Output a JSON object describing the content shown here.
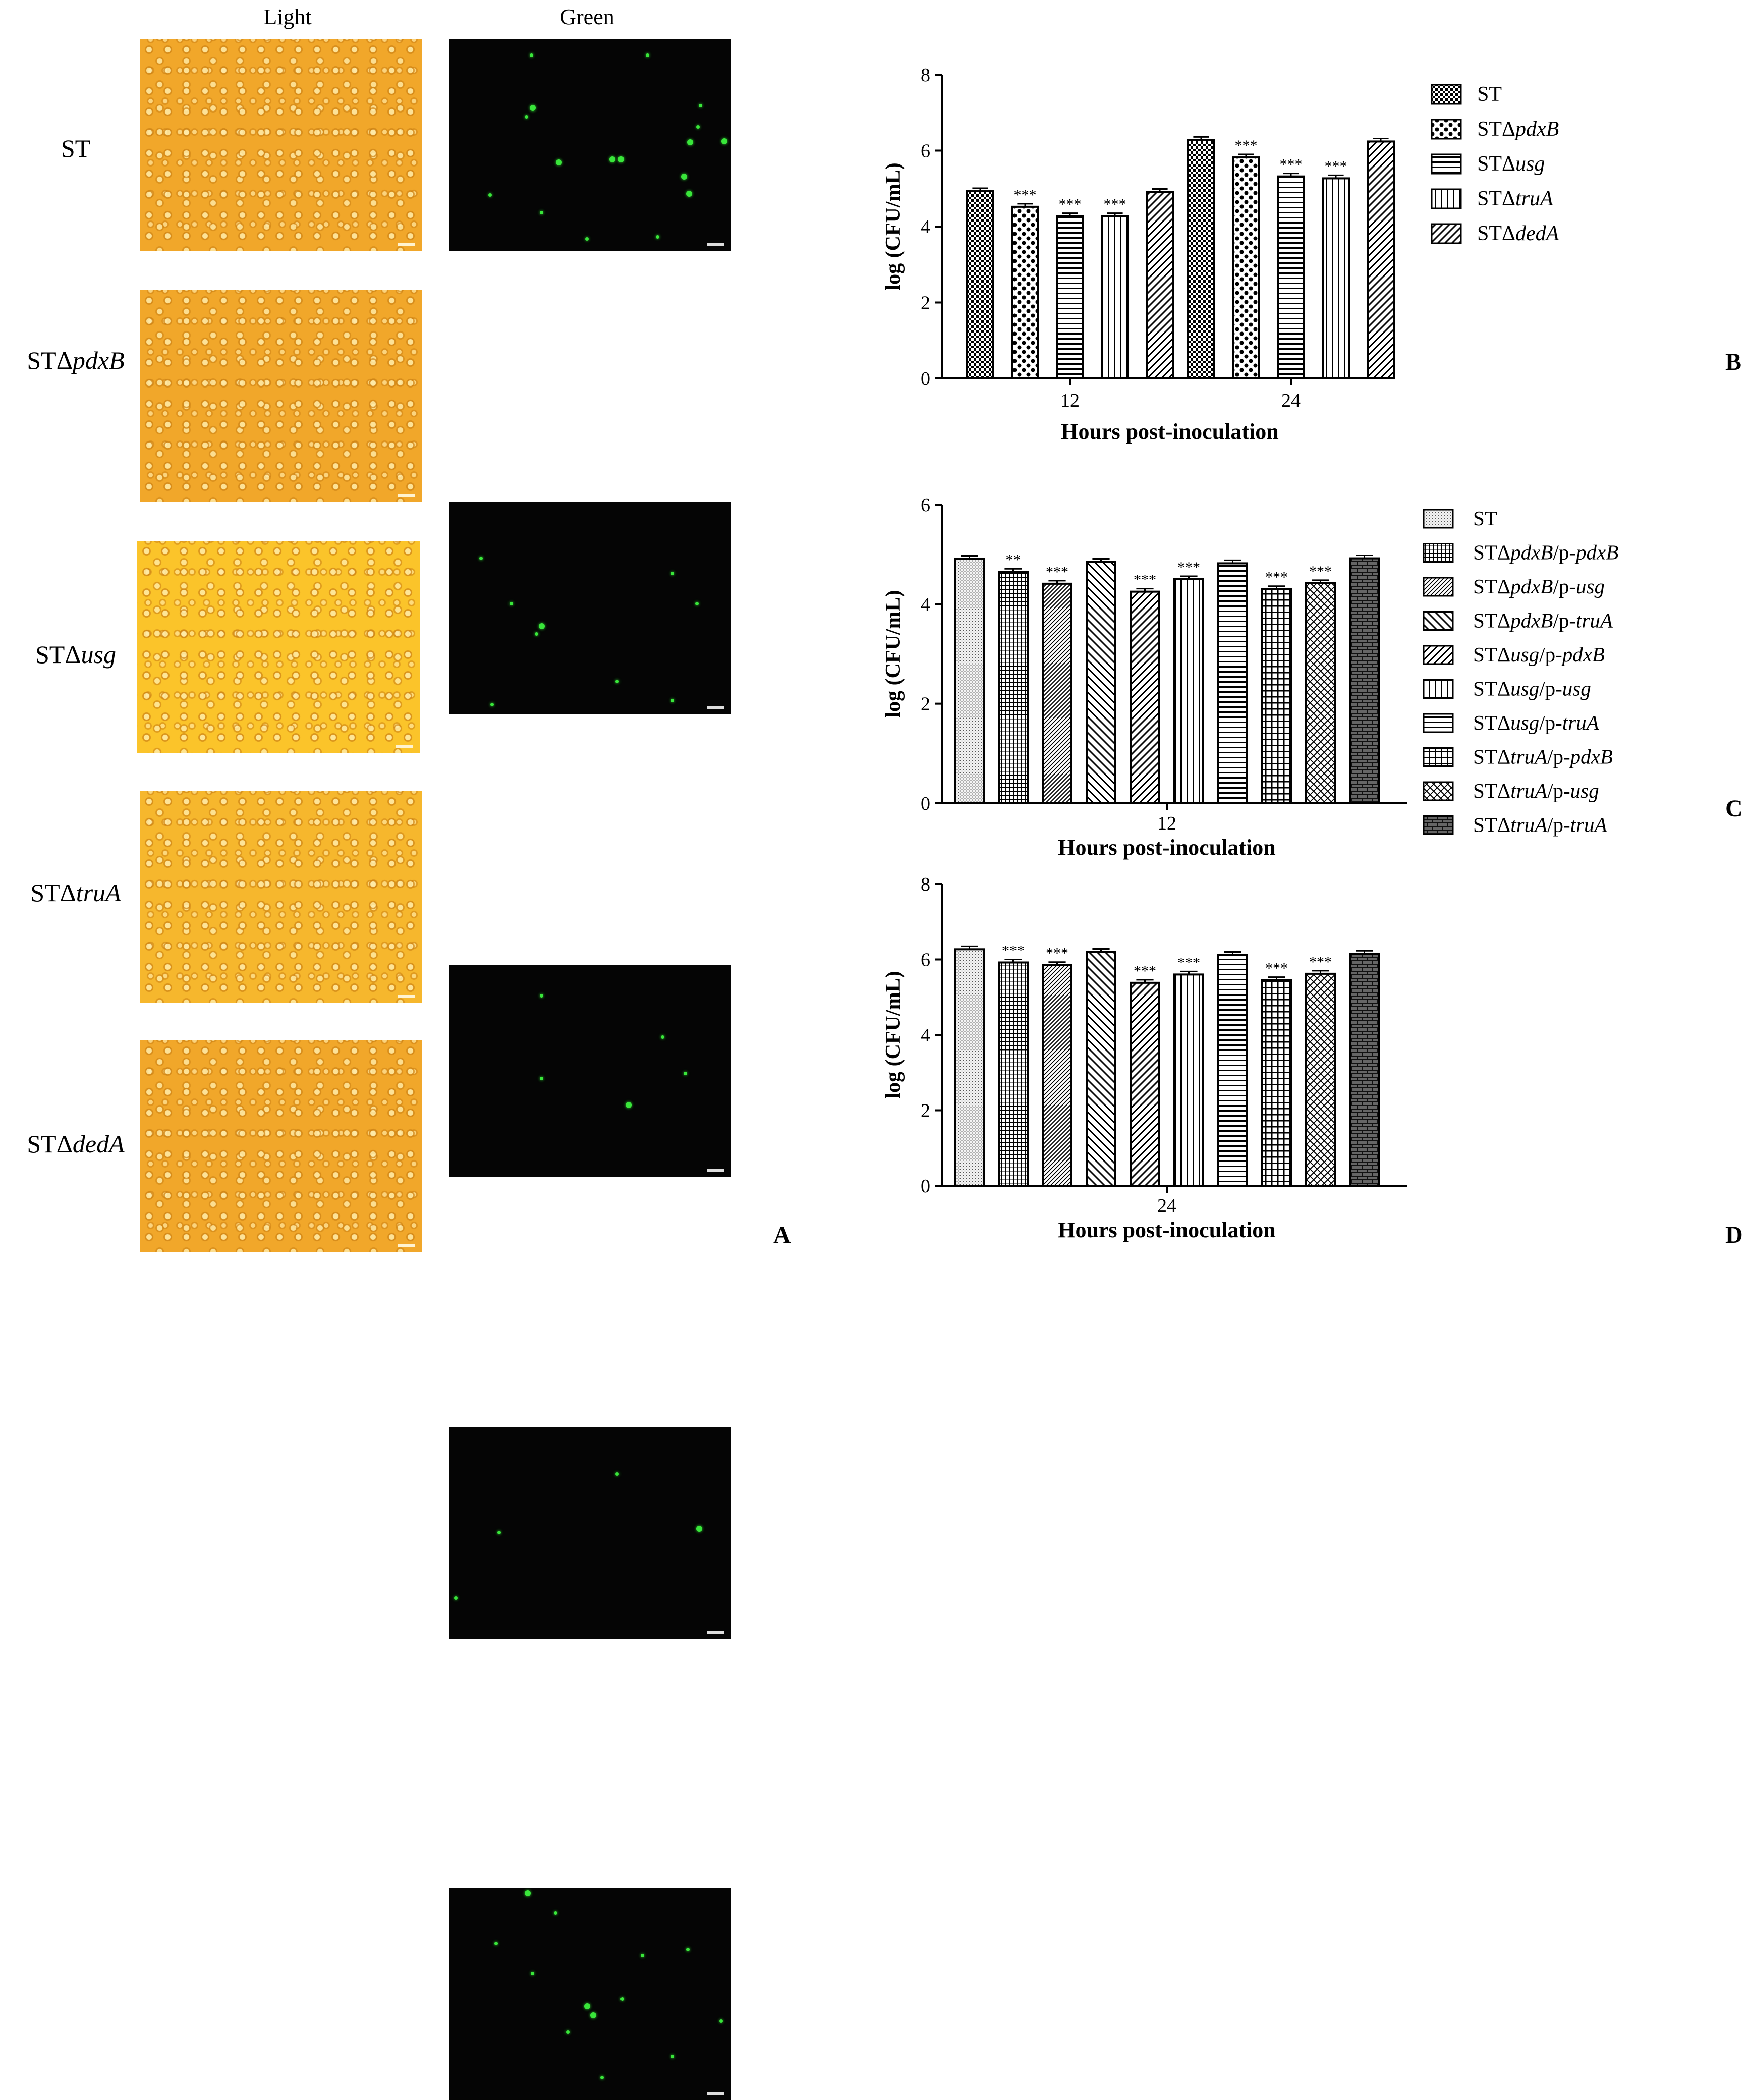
{
  "panel_a": {
    "col_labels": [
      "Light",
      "Green"
    ],
    "row_labels": [
      {
        "prefix": "ST",
        "italic": ""
      },
      {
        "prefix": "STΔ",
        "italic": "pdxB"
      },
      {
        "prefix": "STΔ",
        "italic": "usg"
      },
      {
        "prefix": "STΔ",
        "italic": "truA"
      },
      {
        "prefix": "STΔ",
        "italic": "dedA"
      }
    ],
    "letter": "A"
  },
  "panel_letters": {
    "b": "B",
    "c": "C",
    "d": "D"
  },
  "colors": {
    "bar_stroke": "#000000",
    "background": "#ffffff",
    "light_field": "#f1a72a",
    "green_dot": "#39e63a"
  },
  "chart_data": [
    {
      "id": "B",
      "type": "bar",
      "ylabel": "log (CFU/mL)",
      "xlabel": "Hours post-inoculation",
      "ylim": [
        0,
        8
      ],
      "yticks": [
        0,
        2,
        4,
        6,
        8
      ],
      "categories": [
        "12",
        "24"
      ],
      "series": [
        {
          "name": "ST",
          "name_prefix": "ST",
          "name_italic": "",
          "name_suffix": "",
          "pattern": "checker-fine",
          "values": [
            4.93,
            6.28
          ],
          "sig": [
            "",
            ""
          ]
        },
        {
          "name": "STΔpdxB",
          "name_prefix": "STΔ",
          "name_italic": "pdxB",
          "name_suffix": "",
          "pattern": "checker-large",
          "values": [
            4.52,
            5.82
          ],
          "sig": [
            "***",
            "***"
          ]
        },
        {
          "name": "STΔusg",
          "name_prefix": "STΔ",
          "name_italic": "usg",
          "name_suffix": "",
          "pattern": "hlines",
          "values": [
            4.27,
            5.32
          ],
          "sig": [
            "***",
            "***"
          ]
        },
        {
          "name": "STΔtruA",
          "name_prefix": "STΔ",
          "name_italic": "truA",
          "name_suffix": "",
          "pattern": "vlines",
          "values": [
            4.27,
            5.27
          ],
          "sig": [
            "***",
            "***"
          ]
        },
        {
          "name": "STΔdedA",
          "name_prefix": "STΔ",
          "name_italic": "dedA",
          "name_suffix": "",
          "pattern": "diag-up",
          "values": [
            4.91,
            6.24
          ],
          "sig": [
            "",
            ""
          ]
        }
      ]
    },
    {
      "id": "C",
      "type": "bar",
      "ylabel": "log (CFU/mL)",
      "xlabel": "Hours post-inoculation",
      "ylim": [
        0,
        6
      ],
      "yticks": [
        0,
        2,
        4,
        6
      ],
      "categories": [
        "12"
      ],
      "series": [
        {
          "name": "ST",
          "name_prefix": "ST",
          "name_italic": "",
          "name_mid": "",
          "name_italic2": "",
          "pattern": "dots",
          "values": [
            4.91
          ],
          "sig": [
            ""
          ]
        },
        {
          "name": "STΔpdxB/p-pdxB",
          "name_prefix": "STΔ",
          "name_italic": "pdxB",
          "name_mid": "/p-",
          "name_italic2": "pdxB",
          "pattern": "vlines-dense",
          "values": [
            4.65
          ],
          "sig": [
            "**"
          ]
        },
        {
          "name": "STΔpdxB/p-usg",
          "name_prefix": "STΔ",
          "name_italic": "pdxB",
          "name_mid": "/p-",
          "name_italic2": "usg",
          "pattern": "diag-up-fine",
          "values": [
            4.41
          ],
          "sig": [
            "***"
          ]
        },
        {
          "name": "STΔpdxB/p-truA",
          "name_prefix": "STΔ",
          "name_italic": "pdxB",
          "name_mid": "/p-",
          "name_italic2": "truA",
          "pattern": "diag-down",
          "values": [
            4.85
          ],
          "sig": [
            ""
          ]
        },
        {
          "name": "STΔusg/p-pdxB",
          "name_prefix": "STΔ",
          "name_italic": "usg",
          "name_mid": "/p-",
          "name_italic2": "pdxB",
          "pattern": "diag-up",
          "values": [
            4.25
          ],
          "sig": [
            "***"
          ]
        },
        {
          "name": "STΔusg/p-usg",
          "name_prefix": "STΔ",
          "name_italic": "usg",
          "name_mid": "/p-",
          "name_italic2": "usg",
          "pattern": "vlines",
          "values": [
            4.5
          ],
          "sig": [
            "***"
          ]
        },
        {
          "name": "STΔusg/p-truA",
          "name_prefix": "STΔ",
          "name_italic": "usg",
          "name_mid": "/p-",
          "name_italic2": "truA",
          "pattern": "hlines",
          "values": [
            4.82
          ],
          "sig": [
            ""
          ]
        },
        {
          "name": "STΔtruA/p-pdxB",
          "name_prefix": "STΔ",
          "name_italic": "truA",
          "name_mid": "/p-",
          "name_italic2": "pdxB",
          "pattern": "grid",
          "values": [
            4.3
          ],
          "sig": [
            "***"
          ]
        },
        {
          "name": "STΔtruA/p-usg",
          "name_prefix": "STΔ",
          "name_italic": "truA",
          "name_mid": "/p-",
          "name_italic2": "usg",
          "pattern": "crosshatch",
          "values": [
            4.42
          ],
          "sig": [
            "***"
          ]
        },
        {
          "name": "STΔtruA/p-truA",
          "name_prefix": "STΔ",
          "name_italic": "truA",
          "name_mid": "/p-",
          "name_italic2": "truA",
          "pattern": "brick",
          "values": [
            4.92
          ],
          "sig": [
            ""
          ]
        }
      ]
    },
    {
      "id": "D",
      "type": "bar",
      "ylabel": "log (CFU/mL)",
      "xlabel": "Hours post-inoculation",
      "ylim": [
        0,
        8
      ],
      "yticks": [
        0,
        2,
        4,
        6,
        8
      ],
      "categories": [
        "24"
      ],
      "series": [
        {
          "name": "ST",
          "pattern": "dots",
          "values": [
            6.27
          ],
          "sig": [
            ""
          ]
        },
        {
          "name": "STΔpdxB/p-pdxB",
          "pattern": "vlines-dense",
          "values": [
            5.92
          ],
          "sig": [
            "***"
          ]
        },
        {
          "name": "STΔpdxB/p-usg",
          "pattern": "diag-up-fine",
          "values": [
            5.85
          ],
          "sig": [
            "***"
          ]
        },
        {
          "name": "STΔpdxB/p-truA",
          "pattern": "diag-down",
          "values": [
            6.2
          ],
          "sig": [
            ""
          ]
        },
        {
          "name": "STΔusg/p-pdxB",
          "pattern": "diag-up",
          "values": [
            5.38
          ],
          "sig": [
            "***"
          ]
        },
        {
          "name": "STΔusg/p-usg",
          "pattern": "vlines",
          "values": [
            5.6
          ],
          "sig": [
            "***"
          ]
        },
        {
          "name": "STΔusg/p-truA",
          "pattern": "hlines",
          "values": [
            6.12
          ],
          "sig": [
            ""
          ]
        },
        {
          "name": "STΔtruA/p-pdxB",
          "pattern": "grid",
          "values": [
            5.45
          ],
          "sig": [
            "***"
          ]
        },
        {
          "name": "STΔtruA/p-usg",
          "pattern": "crosshatch",
          "values": [
            5.62
          ],
          "sig": [
            "***"
          ]
        },
        {
          "name": "STΔtruA/p-truA",
          "pattern": "brick",
          "values": [
            6.15
          ],
          "sig": [
            ""
          ]
        }
      ]
    }
  ]
}
